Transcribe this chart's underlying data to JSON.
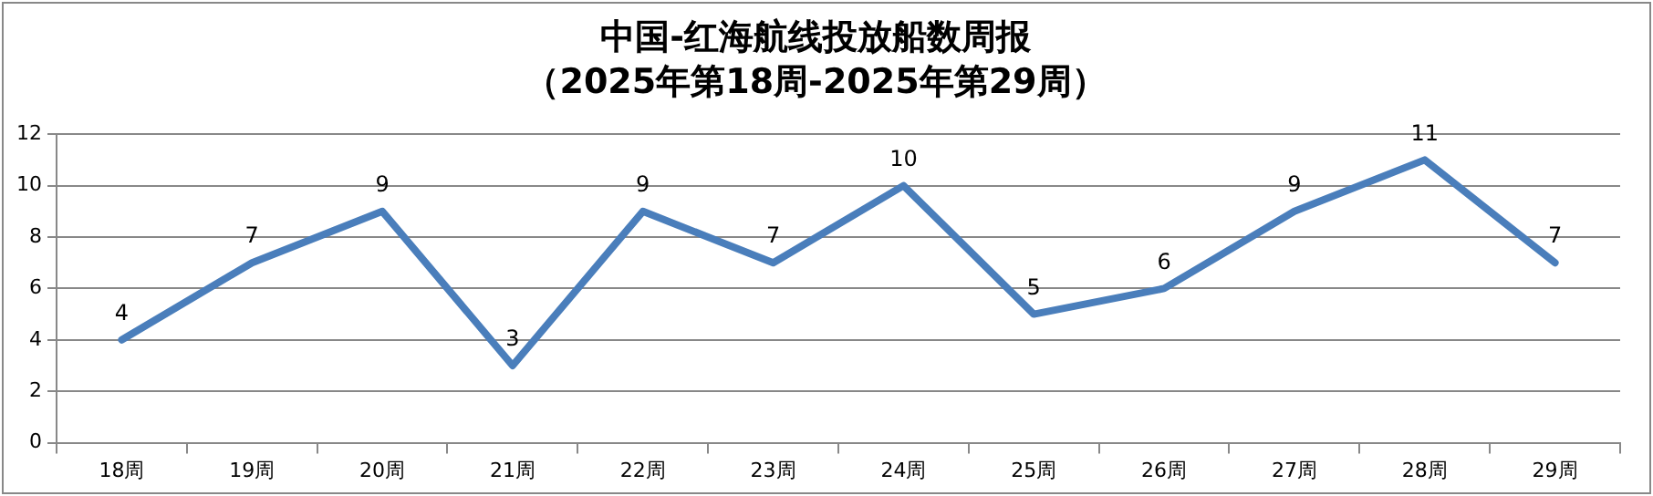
{
  "chart_data": {
    "type": "line",
    "title": "中国-红海航线投放船数周报",
    "subtitle": "（2025年第18周-2025年第29周）",
    "categories": [
      "18周",
      "19周",
      "20周",
      "21周",
      "22周",
      "23周",
      "24周",
      "25周",
      "26周",
      "27周",
      "28周",
      "29周"
    ],
    "series": [
      {
        "color": "#4a7ebb",
        "values": [
          4,
          7,
          9,
          3,
          9,
          7,
          10,
          5,
          6,
          9,
          11,
          7
        ]
      }
    ],
    "ylim": [
      0,
      12
    ],
    "yticks": [
      0,
      2,
      4,
      6,
      8,
      10,
      12
    ],
    "grid": "y",
    "data_labels": true,
    "marker": "none",
    "line_style": "solid",
    "legend": false
  }
}
